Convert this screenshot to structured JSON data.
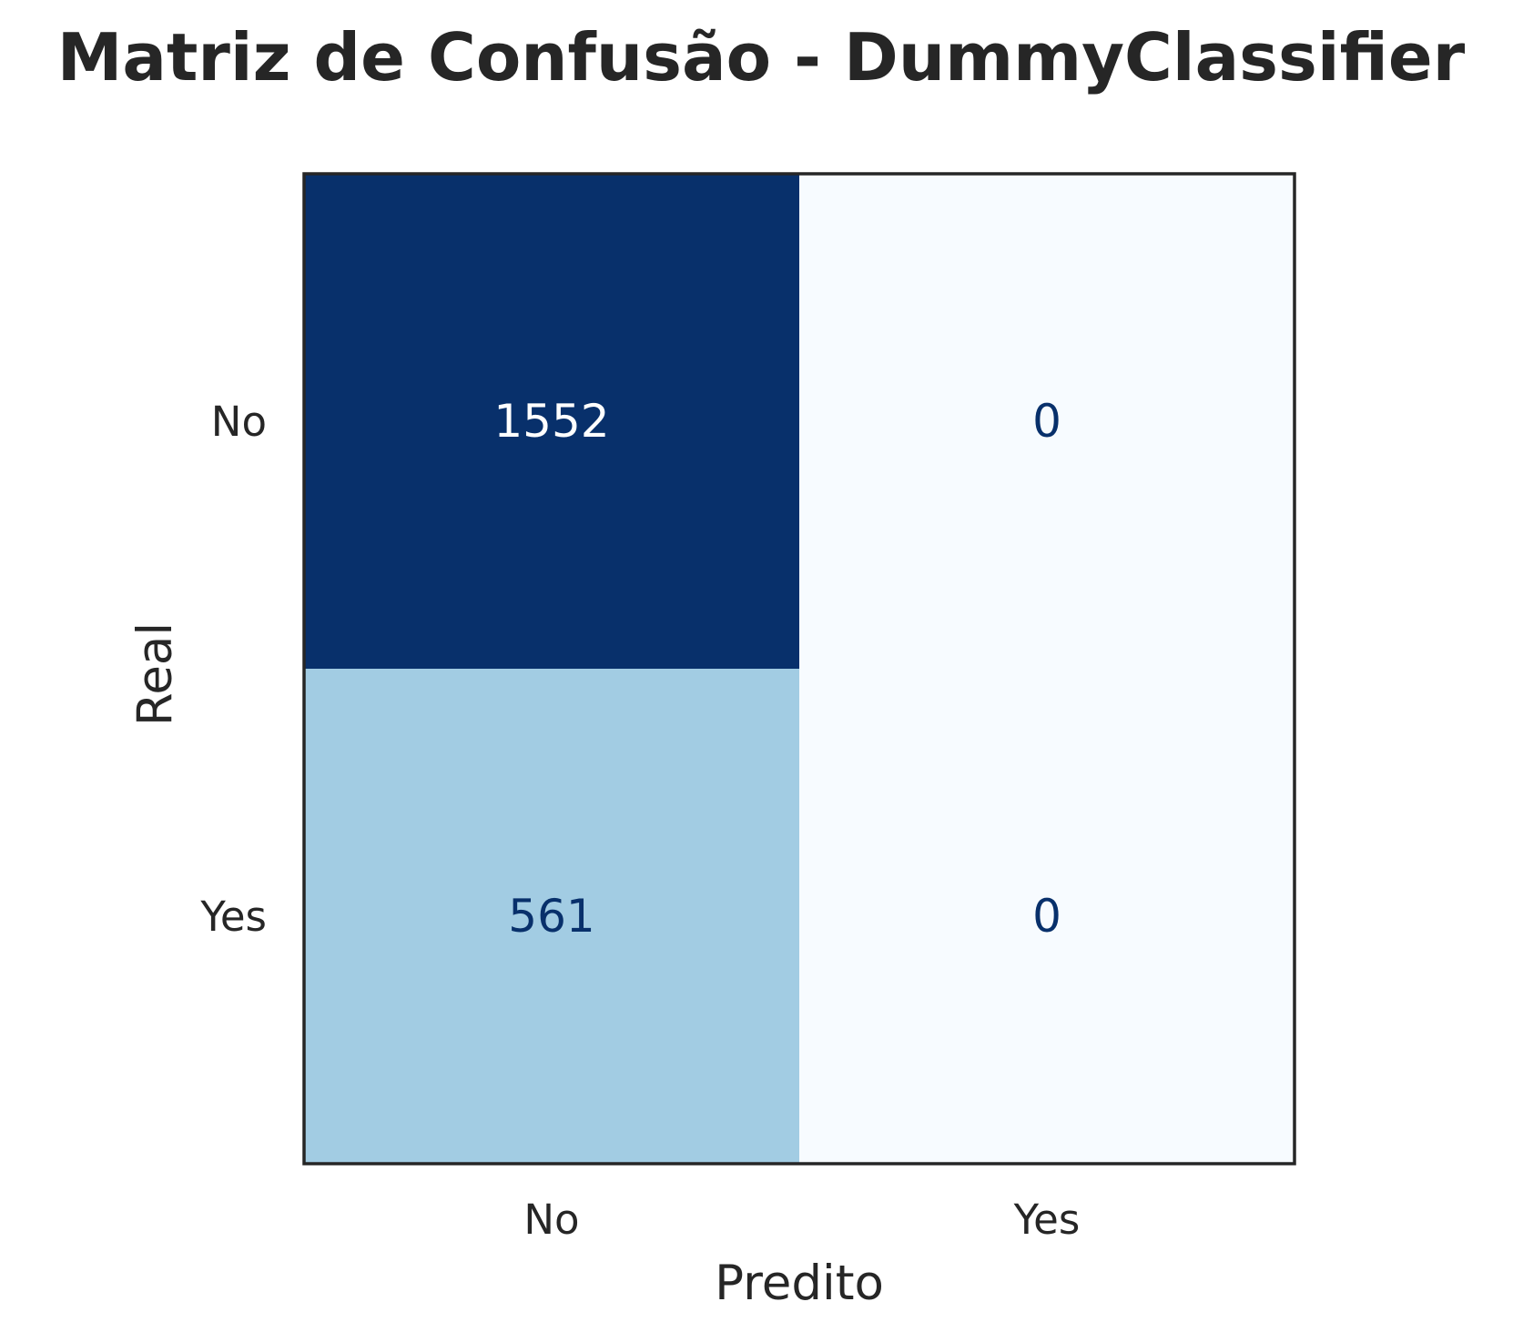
{
  "chart_data": {
    "type": "heatmap",
    "title": "Matriz de Confusão - DummyClassifier",
    "xlabel": "Predito",
    "ylabel": "Real",
    "x_categories": [
      "No",
      "Yes"
    ],
    "y_categories": [
      "No",
      "Yes"
    ],
    "matrix": [
      [
        1552,
        0
      ],
      [
        561,
        0
      ]
    ],
    "colormap": "Blues",
    "vmin": 0,
    "vmax": 1552,
    "colorbar": false,
    "grid": false,
    "colors": {
      "low": "#f7fbff",
      "high": "#08306b",
      "frame": "#262626",
      "text_on_dark": "#ffffff",
      "text_on_light": "#08306b"
    }
  }
}
